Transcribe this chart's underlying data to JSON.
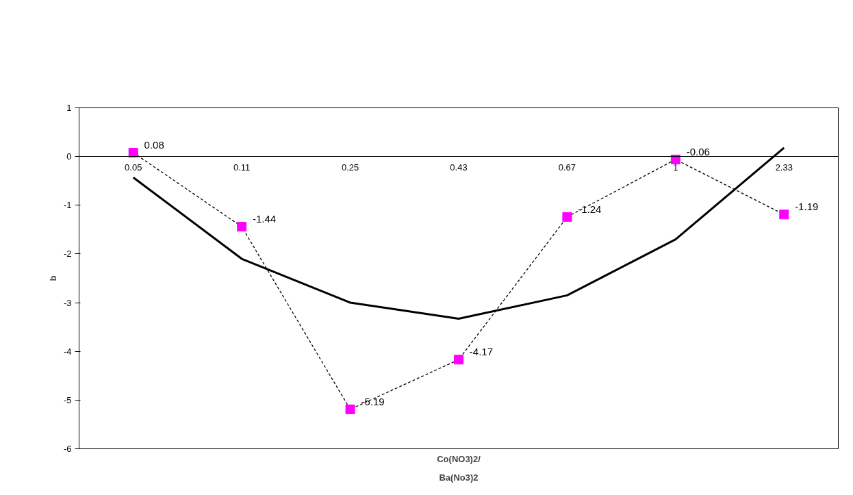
{
  "chart_data": {
    "type": "line",
    "xlabel": "Co(NO3)2/\nBa(No3)2",
    "ylabel": "b",
    "categories": [
      "0.05",
      "0.11",
      "0.25",
      "0.43",
      "0.67",
      "1",
      "2.33"
    ],
    "series": [
      {
        "color": "#ff00ff",
        "values": [
          0.08,
          -1.44,
          -5.19,
          -4.17,
          -1.24,
          -0.06,
          -1.19
        ],
        "marker": "square",
        "line_style": "dashed",
        "data_labels": true
      },
      {
        "type": "line",
        "color": "#000000",
        "x": [
          "0.05",
          "0.11",
          "0.25",
          "0.43",
          "0.67",
          "1",
          "2.33"
        ],
        "values": [
          -0.43,
          -2.1,
          -3.0,
          -3.33,
          -2.85,
          -1.7,
          0.18
        ],
        "marker": "none",
        "line_style": "solid"
      }
    ],
    "ylim": [
      -6,
      1
    ],
    "yticks": [
      -6,
      -5,
      -4,
      -3,
      -2,
      -1,
      0,
      1
    ],
    "grid": false
  }
}
